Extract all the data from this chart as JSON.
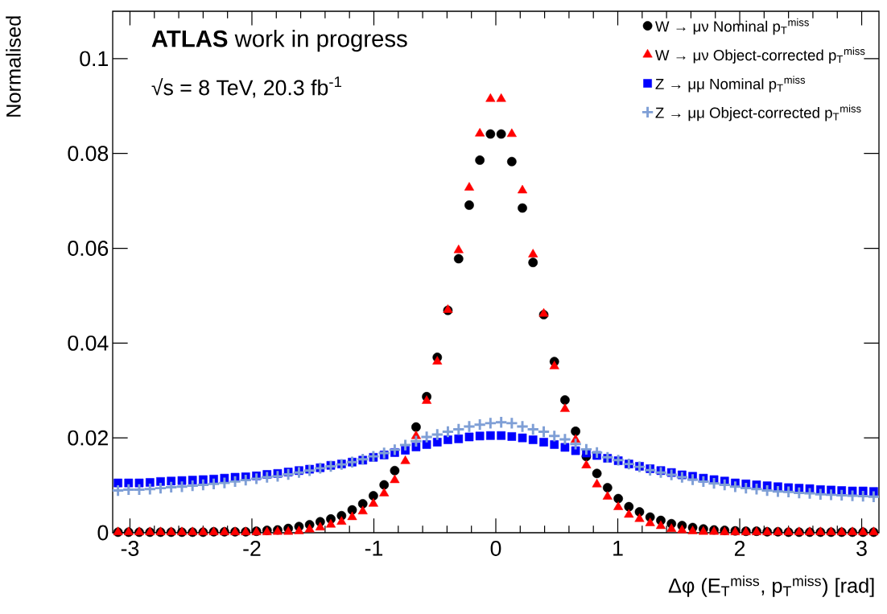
{
  "chart_data": {
    "type": "scatter",
    "xlabel": "Δφ (E$_{T}$$^{miss}$, p$_{T}$$^{miss}$) [rad]",
    "ylabel": "Normalised",
    "annotations": [
      "**ATLAS** work in progress",
      "√s = 8 TeV, 20.3 fb$^{-1}$"
    ],
    "x": [
      -3.098,
      -3.011,
      -2.924,
      -2.836,
      -2.749,
      -2.662,
      -2.574,
      -2.487,
      -2.4,
      -2.313,
      -2.225,
      -2.138,
      -2.051,
      -1.963,
      -1.876,
      -1.789,
      -1.702,
      -1.614,
      -1.527,
      -1.44,
      -1.353,
      -1.265,
      -1.178,
      -1.091,
      -1.004,
      -0.916,
      -0.829,
      -0.742,
      -0.654,
      -0.567,
      -0.48,
      -0.393,
      -0.305,
      -0.218,
      -0.131,
      -0.044,
      0.044,
      0.131,
      0.218,
      0.305,
      0.393,
      0.48,
      0.567,
      0.654,
      0.742,
      0.829,
      0.916,
      1.004,
      1.091,
      1.178,
      1.265,
      1.353,
      1.44,
      1.527,
      1.614,
      1.702,
      1.789,
      1.876,
      1.963,
      2.051,
      2.138,
      2.225,
      2.313,
      2.4,
      2.487,
      2.574,
      2.662,
      2.749,
      2.836,
      2.924,
      3.011,
      3.098
    ],
    "series": [
      {
        "name": "W → μν Nominal p$_{T}$$^{miss}$",
        "color": "#000000",
        "marker": "circle",
        "values": [
          0.0001,
          0.0001,
          0.0001,
          0.0001,
          0.0001,
          0.0001,
          0.0001,
          0.0001,
          0.0001,
          0.0002,
          0.0002,
          0.0002,
          0.0002,
          0.0003,
          0.0005,
          0.0006,
          0.0009,
          0.0013,
          0.0017,
          0.0023,
          0.0029,
          0.0036,
          0.0048,
          0.0061,
          0.0078,
          0.0101,
          0.0131,
          null,
          0.0223,
          0.0287,
          0.037,
          0.0469,
          0.0578,
          0.0691,
          0.0786,
          0.0841,
          0.0841,
          0.0783,
          0.0685,
          0.057,
          0.046,
          0.0361,
          0.028,
          0.0214,
          0.0161,
          0.0125,
          0.0095,
          0.0072,
          0.0055,
          0.0044,
          0.0033,
          0.0026,
          0.0019,
          0.0015,
          0.0011,
          0.0008,
          0.0006,
          0.0005,
          0.0004,
          0.0003,
          0.0003,
          0.0002,
          0.0002,
          0.0001,
          0.0001,
          0.0001,
          0.0001,
          0.0001,
          0.0001,
          0.0001,
          0.0001,
          0.0001
        ]
      },
      {
        "name": "W → μν Object-corrected p$_{T}$$^{miss}$",
        "color": "#ff0000",
        "marker": "triangle",
        "values": [
          0.0001,
          0.0001,
          0.0001,
          0.0001,
          0.0001,
          0.0001,
          0.0001,
          0.0001,
          0.0001,
          0.0001,
          0.0001,
          0.0001,
          0.0001,
          0.0001,
          0.0001,
          0.0002,
          0.0002,
          0.0003,
          0.0007,
          0.0011,
          0.0017,
          0.0023,
          0.0033,
          0.0045,
          0.0061,
          0.0083,
          0.0111,
          0.0151,
          0.0204,
          0.0278,
          0.0361,
          0.047,
          0.0596,
          0.0728,
          0.0842,
          0.0915,
          0.0915,
          0.0841,
          0.0722,
          0.0587,
          0.0462,
          0.0351,
          0.0261,
          0.0196,
          0.0142,
          0.0102,
          0.0076,
          0.0054,
          0.0038,
          0.0029,
          0.002,
          0.0014,
          0.0008,
          0.0005,
          0.0003,
          0.0002,
          0.0002,
          0.0001,
          0.0001,
          0.0001,
          0.0001,
          0.0001,
          0.0001,
          0.0001,
          0.0001,
          0.0001,
          0.0001,
          0.0001,
          0.0001,
          0.0001,
          0.0001,
          0.0001
        ]
      },
      {
        "name": "Z → μμ Nominal p$_{T}$$^{miss}$",
        "color": "#0000ff",
        "marker": "square",
        "values": [
          0.0105,
          0.0105,
          0.0105,
          0.0106,
          0.0108,
          0.0109,
          0.011,
          0.0111,
          0.0112,
          0.0113,
          0.0115,
          0.0117,
          0.0118,
          0.012,
          0.0123,
          0.0125,
          0.0128,
          0.0131,
          0.0134,
          0.0137,
          0.0142,
          0.0145,
          0.0149,
          0.0153,
          0.0159,
          0.0164,
          0.0169,
          0.0174,
          0.0181,
          0.0186,
          0.0191,
          0.0196,
          0.0198,
          0.0202,
          0.0204,
          0.0205,
          0.0205,
          0.0203,
          0.02,
          0.0196,
          0.0191,
          0.0186,
          0.018,
          0.0173,
          0.0168,
          0.0163,
          0.0157,
          0.0152,
          0.0145,
          0.014,
          0.0135,
          0.0131,
          0.0127,
          0.0122,
          0.0119,
          0.0115,
          0.0112,
          0.0109,
          0.0105,
          0.0103,
          0.0101,
          0.0099,
          0.0097,
          0.0095,
          0.0094,
          0.0093,
          0.0091,
          0.009,
          0.0089,
          0.0088,
          0.0088,
          0.0087
        ]
      },
      {
        "name": "Z → μμ Object-corrected p$_{T}$$^{miss}$",
        "color": "#7f9fd6",
        "marker": "cross",
        "values": [
          0.0089,
          0.0091,
          0.0091,
          0.0092,
          0.0094,
          0.0096,
          0.0097,
          0.0099,
          0.0101,
          0.0103,
          0.0105,
          0.0108,
          0.0111,
          0.0114,
          0.0117,
          0.0119,
          0.0123,
          0.0127,
          0.0131,
          0.0136,
          0.014,
          0.0144,
          0.0149,
          0.0155,
          0.0161,
          0.0168,
          0.0175,
          0.0185,
          0.0193,
          0.0202,
          0.0207,
          0.0213,
          0.0218,
          0.0224,
          0.0228,
          0.0231,
          0.0233,
          0.0231,
          0.0224,
          0.0218,
          0.0213,
          0.0204,
          0.0197,
          0.0187,
          0.0176,
          0.0169,
          0.0159,
          0.0153,
          0.0145,
          0.0139,
          0.0132,
          0.0127,
          0.0122,
          0.0117,
          0.0112,
          0.0108,
          0.0104,
          0.0101,
          0.0097,
          0.0094,
          0.0092,
          0.0089,
          0.0087,
          0.0086,
          0.0084,
          0.0083,
          0.0081,
          0.008,
          0.0079,
          0.0078,
          0.0077,
          0.0076
        ]
      }
    ],
    "xlim": [
      -3.1416,
      3.1416
    ],
    "xticks": [
      -3,
      -2,
      -1,
      0,
      1,
      2,
      3
    ],
    "ylim": [
      0,
      0.11
    ],
    "yticks": [
      0,
      0.02,
      0.04,
      0.06,
      0.08,
      0.1
    ],
    "grid": false,
    "legend": "top right"
  }
}
